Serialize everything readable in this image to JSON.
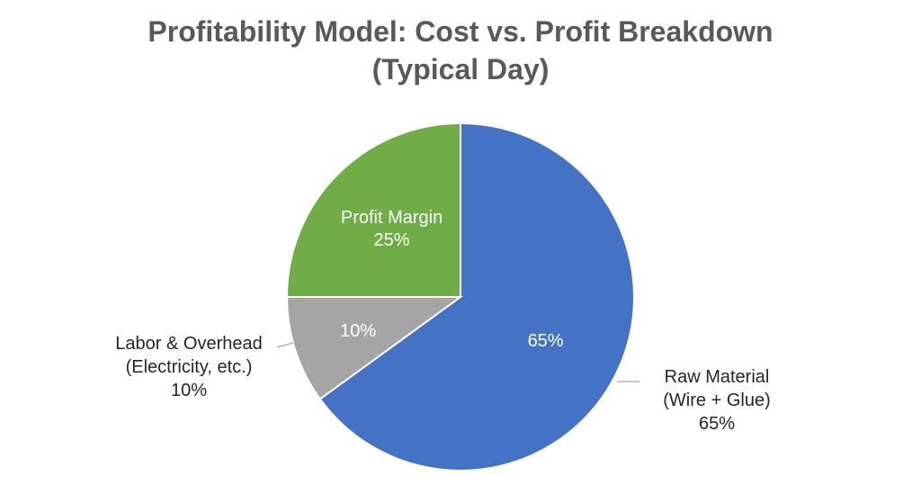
{
  "chart_data": {
    "type": "pie",
    "title": "Profitability Model: Cost vs. Profit Breakdown (Typical Day)",
    "title_lines": [
      "Profitability Model: Cost vs. Profit Breakdown",
      "(Typical Day)"
    ],
    "start_angle_deg": 0,
    "direction": "clockwise",
    "slices": [
      {
        "name": "Raw Material",
        "value": 65,
        "color": "#4472C4",
        "inside_label": "65%",
        "outside_label_lines": [
          "Raw Material",
          "(Wire + Glue)",
          "65%"
        ]
      },
      {
        "name": "Labor & Overhead",
        "value": 10,
        "color": "#A5A5A5",
        "inside_label": "10%",
        "outside_label_lines": [
          "Labor & Overhead",
          "(Electricity, etc.)",
          "10%"
        ]
      },
      {
        "name": "Profit Margin",
        "value": 25,
        "color": "#70AD47",
        "inside_label_lines": [
          "Profit Margin",
          "25%"
        ],
        "outside_label_lines": []
      }
    ]
  }
}
